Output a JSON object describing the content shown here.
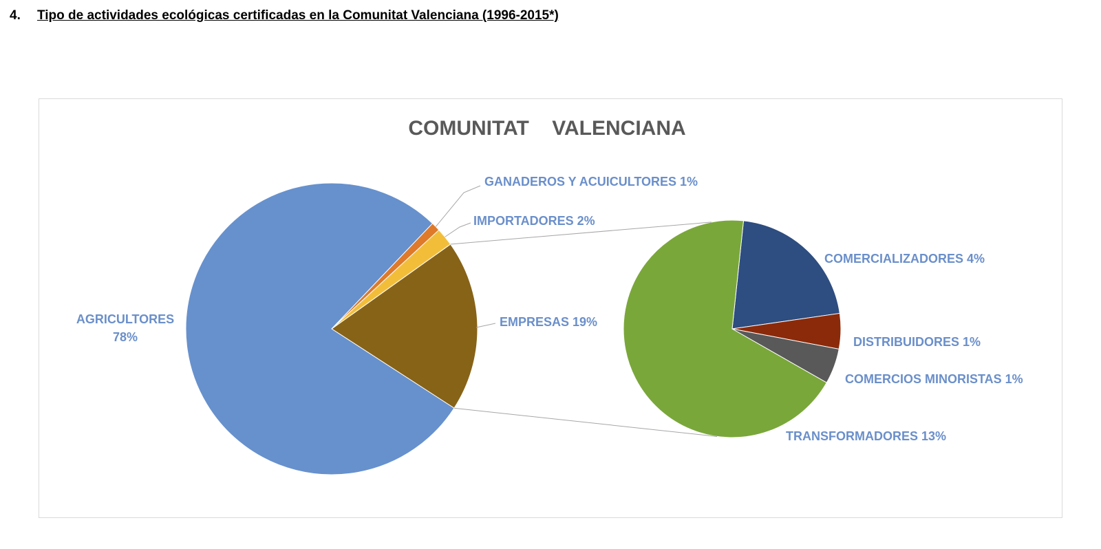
{
  "heading": {
    "number": "4.",
    "text": "Tipo de actividades ecológicas certificadas en la Comunitat Valenciana (1996-2015*)"
  },
  "chart_data": {
    "type": "pie",
    "title": "COMUNITAT    VALENCIANA",
    "main_pie": {
      "slices": [
        {
          "name": "AGRICULTORES",
          "value": 78,
          "label": "78%",
          "color": "#6791cd"
        },
        {
          "name": "GANADEROS Y ACUICULTORES",
          "value": 1,
          "label": "1%",
          "color": "#de7a2a"
        },
        {
          "name": "IMPORTADORES",
          "value": 2,
          "label": "2%",
          "color": "#f2be3a"
        },
        {
          "name": "EMPRESAS",
          "value": 19,
          "label": "19%",
          "color": "#876318"
        }
      ]
    },
    "secondary_pie": {
      "slices": [
        {
          "name": "COMERCIALIZADORES",
          "value": 4,
          "label": "4%",
          "color": "#2e4d80"
        },
        {
          "name": "DISTRIBUIDORES",
          "value": 1,
          "label": "1%",
          "color": "#8b2a0a"
        },
        {
          "name": "COMERCIOS MINORISTAS",
          "value": 1,
          "label": "1%",
          "color": "#595959"
        },
        {
          "name": "TRANSFORMADORES",
          "value": 13,
          "label": "13%",
          "color": "#7aa73a"
        }
      ]
    }
  }
}
